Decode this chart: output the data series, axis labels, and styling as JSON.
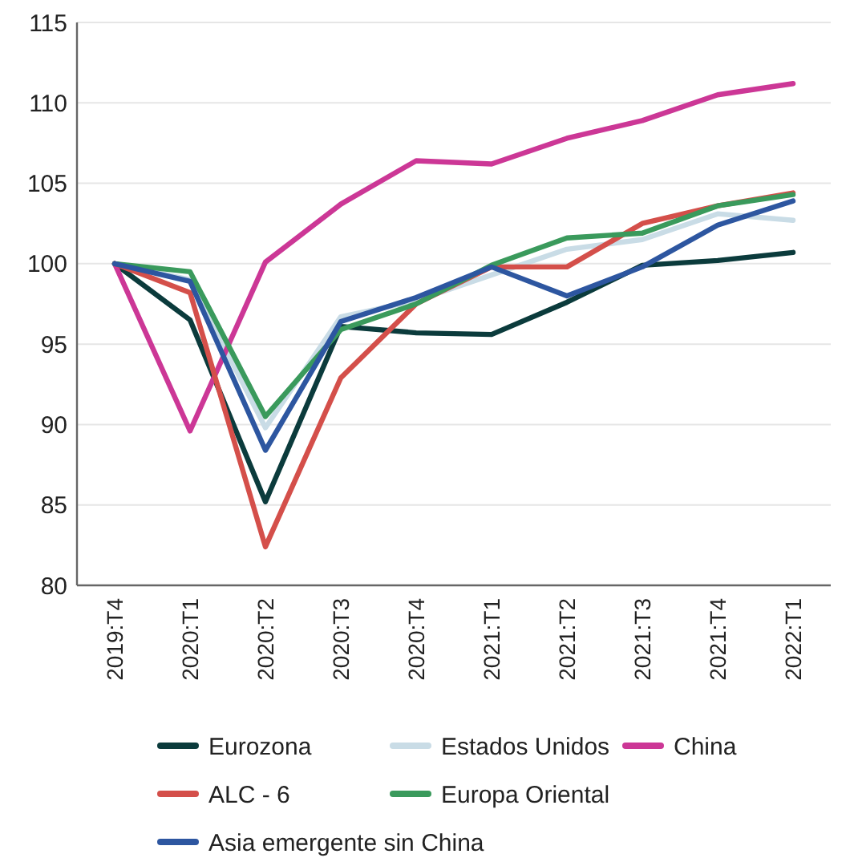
{
  "chart_data": {
    "type": "line",
    "categories": [
      "2019:T4",
      "2020:T1",
      "2020:T2",
      "2020:T3",
      "2020:T4",
      "2021:T1",
      "2021:T2",
      "2021:T3",
      "2021:T4",
      "2022:T1"
    ],
    "series": [
      {
        "name": "Eurozona",
        "color": "#0b3b3c",
        "values": [
          100,
          96.5,
          85.2,
          96.1,
          95.7,
          95.6,
          97.6,
          99.9,
          100.2,
          100.7
        ]
      },
      {
        "name": "Estados Unidos",
        "color": "#c9dce6",
        "values": [
          100,
          99,
          89.8,
          96.7,
          97.7,
          99.3,
          100.9,
          101.5,
          103.1,
          102.7
        ]
      },
      {
        "name": "China",
        "color": "#cc3796",
        "values": [
          100,
          89.6,
          100.1,
          103.7,
          106.4,
          106.2,
          107.8,
          108.9,
          110.5,
          111.2
        ]
      },
      {
        "name": "ALC - 6",
        "color": "#d44f4a",
        "values": [
          100,
          98.2,
          82.4,
          92.9,
          97.5,
          99.8,
          99.8,
          102.5,
          103.6,
          104.4
        ]
      },
      {
        "name": "Europa Oriental",
        "color": "#3a9a5c",
        "values": [
          100,
          99.5,
          90.5,
          95.9,
          97.5,
          99.9,
          101.6,
          101.9,
          103.6,
          104.3
        ]
      },
      {
        "name": "Asia emergente sin China",
        "color": "#2d56a0",
        "values": [
          100,
          98.9,
          88.4,
          96.4,
          97.9,
          99.8,
          98.0,
          99.8,
          102.4,
          103.9
        ]
      }
    ],
    "ylim": [
      80,
      115
    ],
    "yticks": [
      80,
      85,
      90,
      95,
      100,
      105,
      110,
      115
    ],
    "grid": "y",
    "legend": "bottom",
    "marker": "none",
    "line_style": "solid"
  }
}
